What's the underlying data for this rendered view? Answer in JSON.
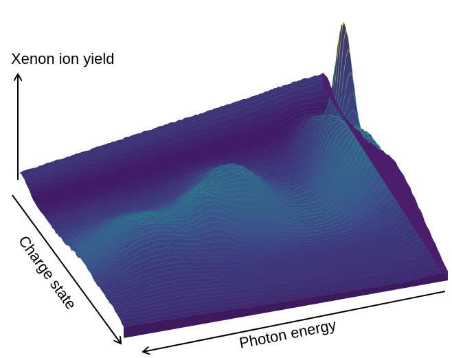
{
  "chart_data": {
    "type": "surface",
    "title": "",
    "zlabel": "Xenon ion yield",
    "ylabel": "Charge state",
    "xlabel": "Photon energy",
    "colormap": [
      "#440154",
      "#3b528b",
      "#21918c",
      "#5ec962",
      "#fde725"
    ],
    "grid": false,
    "legend": "none"
  }
}
